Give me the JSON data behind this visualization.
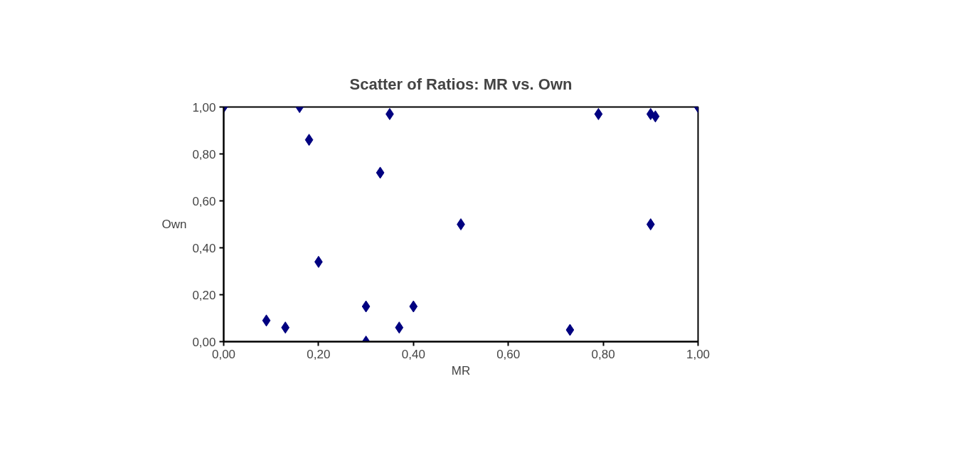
{
  "chart_data": {
    "type": "scatter",
    "title": "Scatter of Ratios: MR vs. Own",
    "xlabel": "MR",
    "ylabel": "Own",
    "x": [
      0.0,
      0.16,
      0.18,
      0.35,
      0.33,
      0.5,
      0.2,
      0.09,
      0.13,
      0.3,
      0.3,
      0.37,
      0.4,
      0.73,
      0.79,
      0.9,
      0.9,
      0.91,
      1.0
    ],
    "series": [
      {
        "color": "#000080",
        "values": [
          1.0,
          1.0,
          0.86,
          0.97,
          0.72,
          0.5,
          0.34,
          0.09,
          0.06,
          0.15,
          0.0,
          0.06,
          0.15,
          0.05,
          0.97,
          0.5,
          0.97,
          0.96,
          1.0
        ]
      }
    ],
    "marker": "diamond",
    "grid": false,
    "xlim": [
      0,
      1
    ],
    "ylim": [
      0,
      1
    ],
    "xticks": [
      {
        "value": 0,
        "label": "0,00"
      },
      {
        "value": 0.2,
        "label": "0,20"
      },
      {
        "value": 0.4,
        "label": "0,40"
      },
      {
        "value": 0.6,
        "label": "0,60"
      },
      {
        "value": 0.8,
        "label": "0,80"
      },
      {
        "value": 1,
        "label": "1,00"
      }
    ],
    "yticks": [
      {
        "value": 0,
        "label": "0,00"
      },
      {
        "value": 0.2,
        "label": "0,20"
      },
      {
        "value": 0.4,
        "label": "0,40"
      },
      {
        "value": 0.6,
        "label": "0,60"
      },
      {
        "value": 0.8,
        "label": "0,80"
      },
      {
        "value": 1,
        "label": "1,00"
      }
    ]
  }
}
